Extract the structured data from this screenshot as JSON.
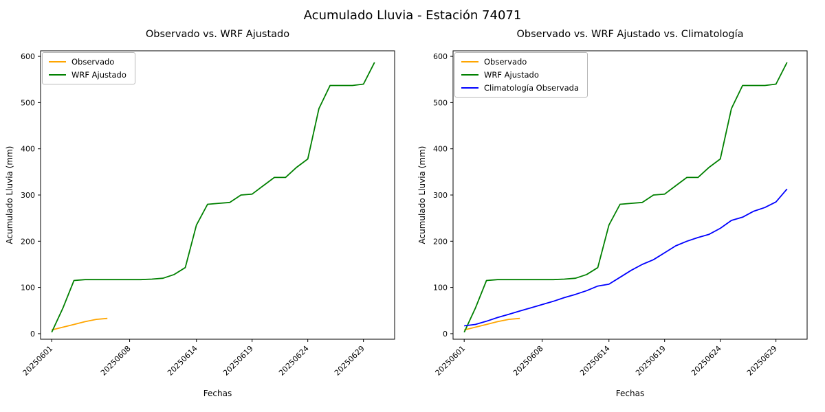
{
  "figure": {
    "title": "Acumulado Lluvia - Estación 74071"
  },
  "chart_data": [
    {
      "type": "line",
      "title": "Observado vs. WRF Ajustado",
      "xlabel": "Fechas",
      "ylabel": "Acumulado Lluvia (mm)",
      "ylim": [
        0,
        600
      ],
      "grid": false,
      "legend_position": "upper left",
      "yticks": [
        0,
        100,
        200,
        300,
        400,
        500,
        600
      ],
      "xtick_days": [
        1,
        8,
        14,
        19,
        24,
        29
      ],
      "xtick_labels": [
        "20250601",
        "20250608",
        "20250614",
        "20250619",
        "20250624",
        "20250629"
      ],
      "series": [
        {
          "name": "Observado",
          "color": "#FFA500",
          "x": [
            1,
            2,
            3,
            4,
            5,
            6
          ],
          "y": [
            8,
            14,
            20,
            26,
            31,
            33
          ]
        },
        {
          "name": "WRF Ajustado",
          "color": "#008000",
          "x": [
            1,
            2,
            3,
            4,
            5,
            6,
            7,
            8,
            9,
            10,
            11,
            12,
            13,
            14,
            15,
            16,
            17,
            18,
            19,
            20,
            21,
            22,
            23,
            24,
            25,
            26,
            27,
            28,
            29,
            30
          ],
          "y": [
            3,
            55,
            115,
            117,
            117,
            117,
            117,
            117,
            117,
            118,
            120,
            128,
            143,
            235,
            280,
            282,
            284,
            300,
            302,
            320,
            338,
            338,
            360,
            378,
            487,
            537,
            537,
            537,
            540,
            587
          ]
        }
      ]
    },
    {
      "type": "line",
      "title": "Observado vs. WRF Ajustado vs. Climatología",
      "xlabel": "Fechas",
      "ylabel": "Acumulado Lluvia (mm)",
      "ylim": [
        0,
        600
      ],
      "grid": false,
      "legend_position": "upper left",
      "yticks": [
        0,
        100,
        200,
        300,
        400,
        500,
        600
      ],
      "xtick_days": [
        1,
        8,
        14,
        19,
        24,
        29
      ],
      "xtick_labels": [
        "20250601",
        "20250608",
        "20250614",
        "20250619",
        "20250624",
        "20250629"
      ],
      "series": [
        {
          "name": "Observado",
          "color": "#FFA500",
          "x": [
            1,
            2,
            3,
            4,
            5,
            6
          ],
          "y": [
            8,
            14,
            20,
            26,
            31,
            33
          ]
        },
        {
          "name": "WRF Ajustado",
          "color": "#008000",
          "x": [
            1,
            2,
            3,
            4,
            5,
            6,
            7,
            8,
            9,
            10,
            11,
            12,
            13,
            14,
            15,
            16,
            17,
            18,
            19,
            20,
            21,
            22,
            23,
            24,
            25,
            26,
            27,
            28,
            29,
            30
          ],
          "y": [
            3,
            55,
            115,
            117,
            117,
            117,
            117,
            117,
            117,
            118,
            120,
            128,
            143,
            235,
            280,
            282,
            284,
            300,
            302,
            320,
            338,
            338,
            360,
            378,
            487,
            537,
            537,
            537,
            540,
            587
          ]
        },
        {
          "name": "Climatología Observada",
          "color": "#0000FF",
          "x": [
            1,
            2,
            3,
            4,
            5,
            6,
            7,
            8,
            9,
            10,
            11,
            12,
            13,
            14,
            15,
            16,
            17,
            18,
            19,
            20,
            21,
            22,
            23,
            24,
            25,
            26,
            27,
            28,
            29,
            30
          ],
          "y": [
            17,
            20,
            27,
            35,
            42,
            49,
            56,
            63,
            70,
            78,
            85,
            93,
            103,
            107,
            122,
            137,
            150,
            160,
            175,
            190,
            200,
            208,
            215,
            228,
            245,
            252,
            265,
            273,
            285,
            313
          ]
        }
      ]
    }
  ]
}
